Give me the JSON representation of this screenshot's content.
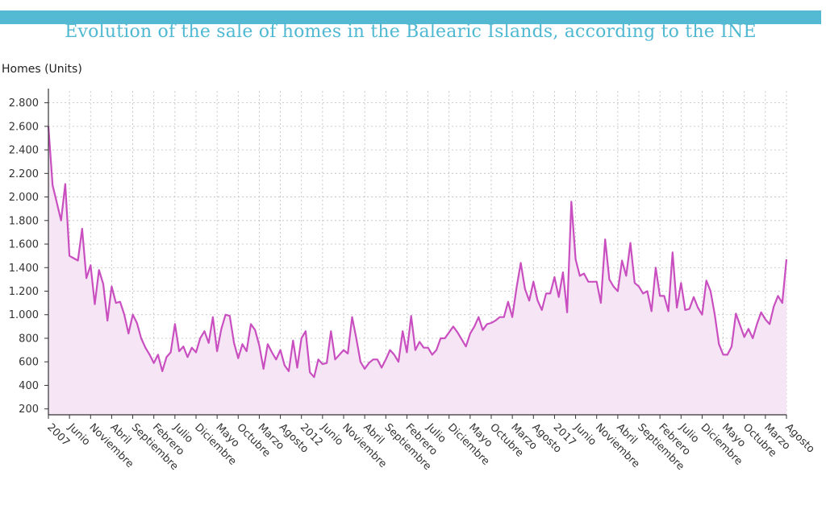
{
  "header": {
    "title": "Evolution of the sale of homes in the Balearic Islands, according to the INE"
  },
  "colors": {
    "topbar": "#54b9d2",
    "title": "#4fb8d2",
    "line": "#c94fc0",
    "area": "#f6e6f5",
    "grid": "#bdbdbd"
  },
  "chart_data": {
    "type": "area",
    "title": "Evolution of the sale of homes in the Balearic Islands, according to the INE",
    "ylabel": "Homes (Units)",
    "xlabel": "",
    "ylim": [
      150,
      2900
    ],
    "yticks": [
      200,
      400,
      600,
      800,
      1000,
      1200,
      1400,
      1600,
      1800,
      2000,
      2200,
      2400,
      2600,
      2800
    ],
    "ytick_labels": [
      "200",
      "400",
      "600",
      "800",
      "1.000",
      "1.200",
      "1.400",
      "1.600",
      "1.800",
      "2.000",
      "2.200",
      "2.400",
      "2.600",
      "2.800"
    ],
    "x_start": "2007-01",
    "x_end": "2019-08",
    "grid": true,
    "legend": "none",
    "xtick_labels": [
      "2007",
      "Junio",
      "Noviembre",
      "Abril",
      "Septiembre",
      "Febrero",
      "Julio",
      "Diciembre",
      "Mayo",
      "Octubre",
      "Marzo",
      "Agosto",
      "2012",
      "Junio",
      "Noviembre",
      "Abril",
      "Septiembre",
      "Febrero",
      "Julio",
      "Diciembre",
      "Mayo",
      "Octubre",
      "Marzo",
      "Agosto",
      "2017",
      "Junio",
      "Noviembre",
      "Abril",
      "Septiembre",
      "Febrero",
      "Julio",
      "Diciembre",
      "Mayo",
      "Octubre",
      "Marzo",
      "Agosto"
    ],
    "series": [
      {
        "values": [
          2600,
          2100,
          1950,
          1800,
          2110,
          1500,
          1480,
          1460,
          1730,
          1310,
          1420,
          1090,
          1380,
          1260,
          950,
          1240,
          1100,
          1110,
          1000,
          840,
          1000,
          930,
          800,
          720,
          660,
          590,
          660,
          520,
          640,
          680,
          920,
          690,
          730,
          640,
          720,
          680,
          800,
          860,
          760,
          980,
          690,
          880,
          1000,
          990,
          760,
          630,
          750,
          690,
          920,
          870,
          740,
          540,
          750,
          680,
          620,
          700,
          570,
          520,
          780,
          550,
          800,
          860,
          510,
          470,
          620,
          580,
          590,
          860,
          620,
          660,
          700,
          670,
          980,
          800,
          600,
          540,
          590,
          620,
          620,
          550,
          620,
          700,
          660,
          600,
          860,
          680,
          990,
          700,
          770,
          720,
          720,
          660,
          700,
          800,
          800,
          850,
          900,
          850,
          790,
          730,
          840,
          900,
          980,
          870,
          920,
          930,
          950,
          980,
          980,
          1110,
          980,
          1230,
          1440,
          1220,
          1120,
          1280,
          1120,
          1040,
          1180,
          1180,
          1320,
          1150,
          1360,
          1020,
          1960,
          1470,
          1330,
          1350,
          1280,
          1280,
          1280,
          1100,
          1640,
          1300,
          1240,
          1200,
          1460,
          1330,
          1610,
          1270,
          1240,
          1180,
          1200,
          1030,
          1400,
          1160,
          1160,
          1030,
          1530,
          1060,
          1270,
          1040,
          1050,
          1150,
          1060,
          1000,
          1290,
          1200,
          1000,
          750,
          660,
          660,
          730,
          1010,
          910,
          810,
          880,
          800,
          920,
          1020,
          960,
          920,
          1070,
          1160,
          1100,
          1470
        ]
      }
    ]
  }
}
